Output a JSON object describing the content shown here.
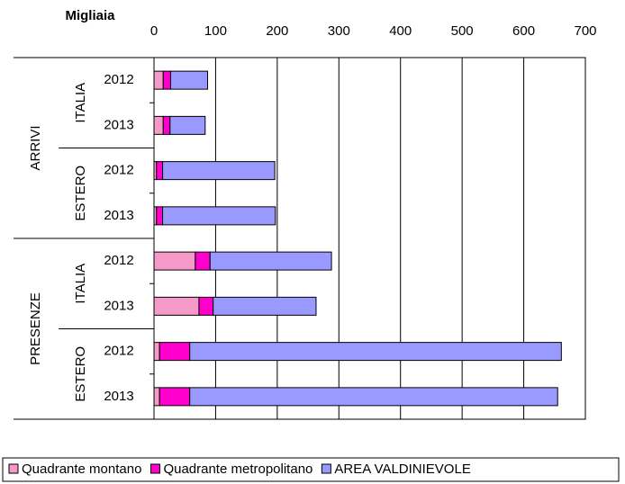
{
  "chart_data": {
    "type": "stacked-barh",
    "title": "Migliaia",
    "categories": [
      "2012",
      "2013",
      "2012",
      "2013",
      "2012",
      "2013",
      "2012",
      "2013"
    ],
    "category_groups": [
      {
        "name": "ARRIVI",
        "subgroups": [
          "ITALIA",
          "ESTERO"
        ]
      },
      {
        "name": "PRESENZE",
        "subgroups": [
          "ITALIA",
          "ESTERO"
        ]
      }
    ],
    "series": [
      {
        "name": "Quadrante montano",
        "color": "#f59ac8",
        "values": [
          15,
          15,
          4,
          4,
          67,
          73,
          9,
          9
        ]
      },
      {
        "name": "Quadrante metropolitano",
        "color": "#ff00cc",
        "values": [
          12,
          11,
          10,
          10,
          24,
          23,
          49,
          49
        ]
      },
      {
        "name": "AREA VALDINIEVOLE",
        "color": "#9999ff",
        "values": [
          60,
          57,
          182,
          183,
          197,
          167,
          603,
          597
        ]
      }
    ],
    "xlim": [
      0,
      700
    ],
    "xticks": [
      0,
      100,
      200,
      300,
      400,
      500,
      600,
      700
    ],
    "grid": true,
    "legend": "bottom"
  }
}
